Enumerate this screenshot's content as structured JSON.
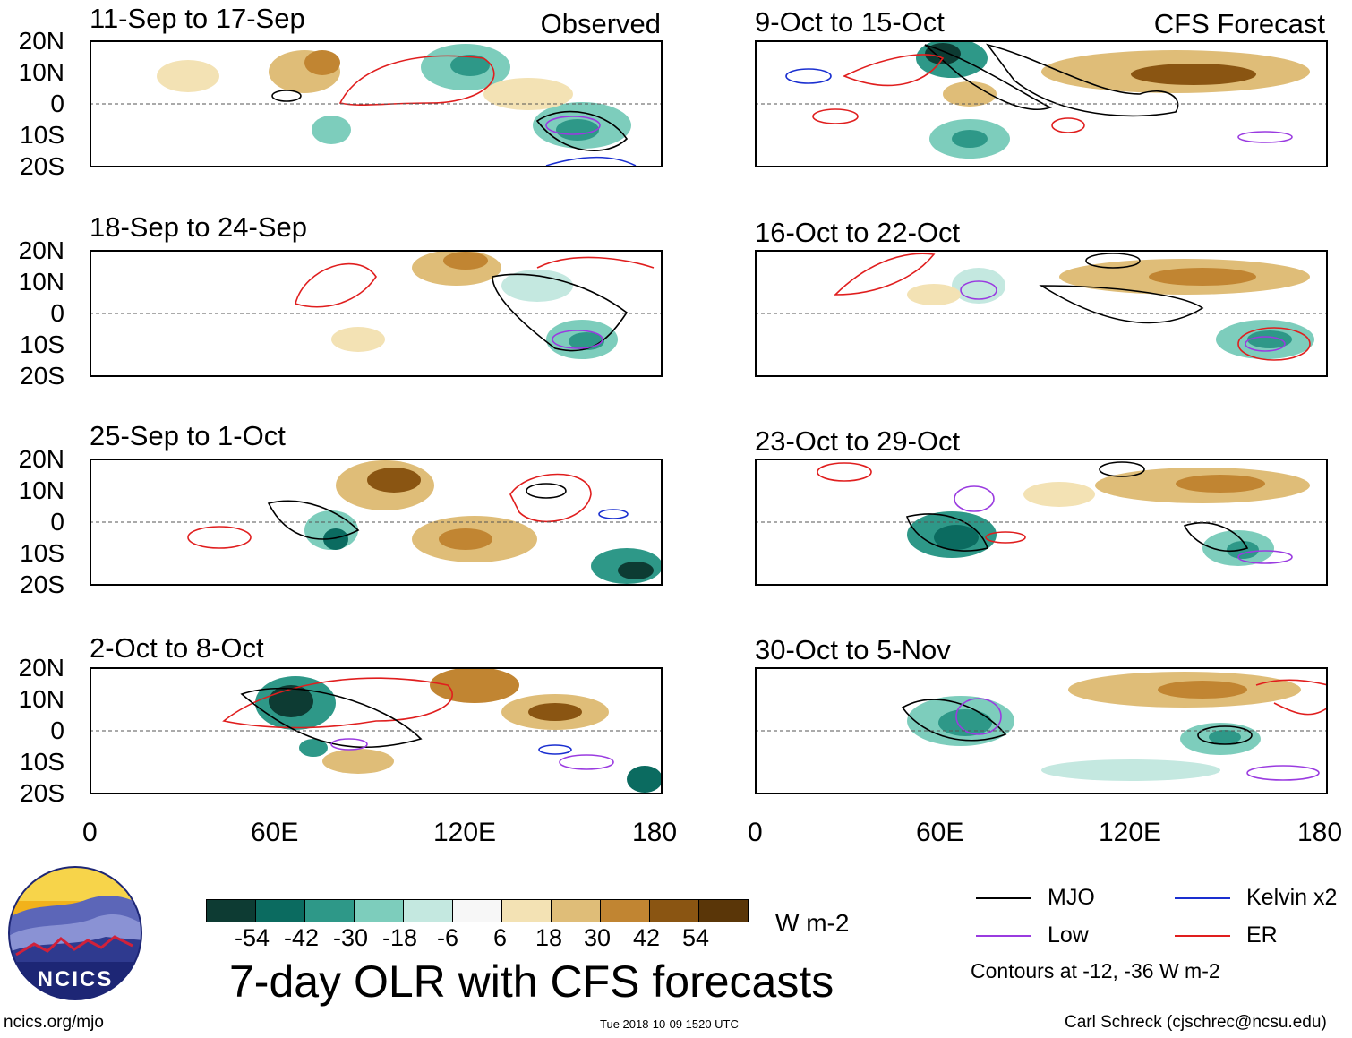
{
  "title": "7-day OLR with CFS forecasts",
  "units": "W m-2",
  "column_labels": {
    "observed": "Observed",
    "forecast": "CFS Forecast"
  },
  "panels_left": [
    "11-Sep to 17-Sep",
    "18-Sep to 24-Sep",
    "25-Sep to 1-Oct",
    "2-Oct to 8-Oct"
  ],
  "panels_right": [
    "9-Oct to 15-Oct",
    "16-Oct to 22-Oct",
    "23-Oct to 29-Oct",
    "30-Oct to 5-Nov"
  ],
  "y_ticks": [
    "20N",
    "10N",
    "0",
    "10S",
    "20S"
  ],
  "x_ticks": [
    "0",
    "60E",
    "120E",
    "180"
  ],
  "colorbar": {
    "labels": [
      "-54",
      "-42",
      "-30",
      "-18",
      "-6",
      "6",
      "18",
      "30",
      "42",
      "54"
    ],
    "colors": [
      "#0d3b33",
      "#0b6b60",
      "#2e9888",
      "#7dcdbc",
      "#c4e8e0",
      "#f7f7f7",
      "#f3e2b4",
      "#dfbd78",
      "#c18532",
      "#8a5512",
      "#5a3608"
    ]
  },
  "legend": {
    "mjo": "MJO",
    "low": "Low",
    "kelvin": "Kelvin x2",
    "er": "ER",
    "contours_note": "Contours at -12, -36 W m-2",
    "colors": {
      "mjo": "#000000",
      "low": "#9a3be0",
      "kelvin": "#1a2fd0",
      "er": "#e01e1e"
    }
  },
  "footer": {
    "url": "ncics.org/mjo",
    "timestamp": "Tue 2018-10-09 1520 UTC",
    "credit": "Carl Schreck (cjschrec@ncsu.edu)",
    "logo_text": "NCICS"
  },
  "chart_data": {
    "type": "heatmap",
    "variable": "7-day OLR anomaly with CFS forecast",
    "units": "W m-2",
    "x_range": [
      0,
      180
    ],
    "y_range": [
      -20,
      20
    ],
    "x_ticks": [
      "0",
      "60E",
      "120E",
      "180"
    ],
    "y_ticks": [
      "20N",
      "10N",
      "0",
      "10S",
      "20S"
    ],
    "levels": [
      -54,
      -42,
      -30,
      -18,
      -6,
      6,
      18,
      30,
      42,
      54
    ],
    "contour_levels": [
      -12,
      -36
    ],
    "panels": [
      "11-Sep to 17-Sep",
      "18-Sep to 24-Sep",
      "25-Sep to 1-Oct",
      "2-Oct to 8-Oct",
      "9-Oct to 15-Oct",
      "16-Oct to 22-Oct",
      "23-Oct to 29-Oct",
      "30-Oct to 5-Nov"
    ]
  }
}
